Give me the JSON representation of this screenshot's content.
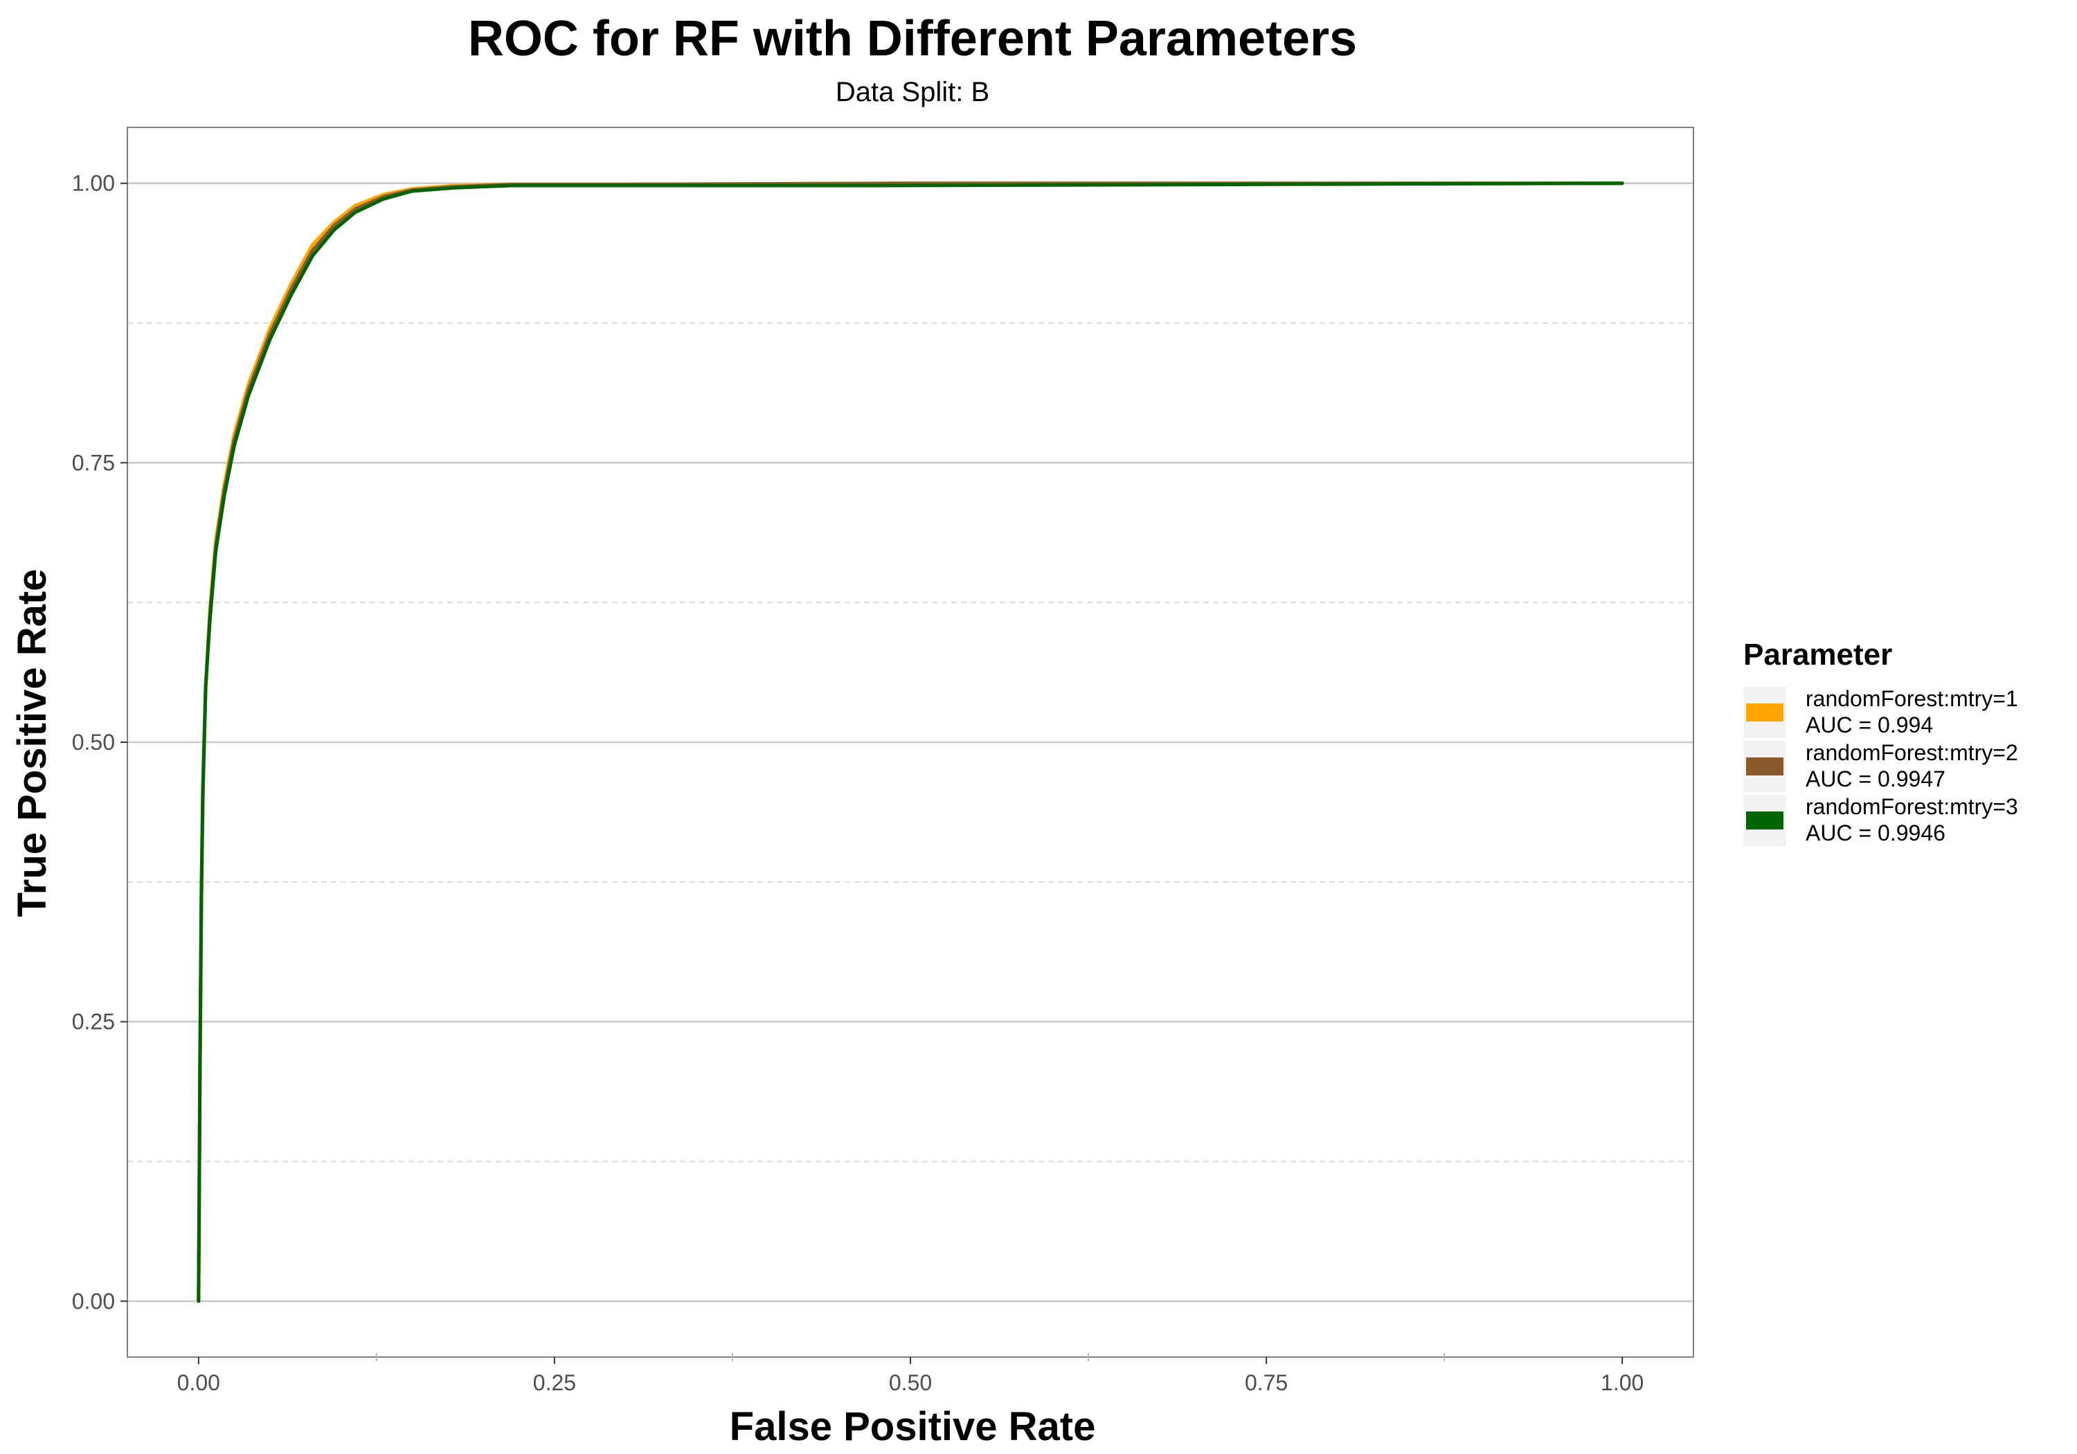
{
  "chart_data": {
    "type": "line",
    "title": "ROC for RF with Different Parameters",
    "subtitle": "Data Split: B",
    "xlabel": "False Positive Rate",
    "ylabel": "True Positive Rate",
    "xlim": [
      -0.05,
      1.05
    ],
    "ylim": [
      -0.05,
      1.05
    ],
    "x_ticks": [
      0,
      0.25,
      0.5,
      0.75,
      1
    ],
    "x_tick_labels": [
      "0.00",
      "0.25",
      "0.50",
      "0.75",
      "1.00"
    ],
    "y_ticks": [
      0,
      0.25,
      0.5,
      0.75,
      1
    ],
    "y_tick_labels": [
      "0.00",
      "0.25",
      "0.50",
      "0.75",
      "1.00"
    ],
    "grid": true,
    "legend": {
      "title": "Parameter",
      "placement": "right"
    },
    "series": [
      {
        "name": "randomForest:mtry=1",
        "auc_label": "AUC = 0.994",
        "color": "#FFA500",
        "x": [
          0,
          0.001,
          0.002,
          0.003,
          0.005,
          0.008,
          0.012,
          0.018,
          0.025,
          0.035,
          0.05,
          0.065,
          0.08,
          0.095,
          0.11,
          0.13,
          0.15,
          0.18,
          0.22,
          0.3,
          0.5,
          0.75,
          1.0
        ],
        "y": [
          0,
          0.2,
          0.35,
          0.45,
          0.55,
          0.62,
          0.68,
          0.73,
          0.775,
          0.82,
          0.87,
          0.91,
          0.945,
          0.965,
          0.98,
          0.99,
          0.995,
          0.998,
          0.999,
          0.999,
          1.0,
          1.0,
          1.0
        ]
      },
      {
        "name": "randomForest:mtry=2",
        "auc_label": "AUC = 0.9947",
        "color": "#8B5A2B",
        "x": [
          0,
          0.001,
          0.002,
          0.003,
          0.005,
          0.008,
          0.012,
          0.018,
          0.025,
          0.035,
          0.05,
          0.065,
          0.08,
          0.095,
          0.11,
          0.13,
          0.15,
          0.18,
          0.22,
          0.3,
          0.5,
          0.75,
          1.0
        ],
        "y": [
          0,
          0.21,
          0.36,
          0.45,
          0.55,
          0.615,
          0.675,
          0.725,
          0.77,
          0.815,
          0.865,
          0.905,
          0.94,
          0.962,
          0.977,
          0.988,
          0.994,
          0.997,
          0.999,
          0.999,
          1.0,
          1.0,
          1.0
        ]
      },
      {
        "name": "randomForest:mtry=3",
        "auc_label": "AUC = 0.9946",
        "color": "#006400",
        "x": [
          0,
          0.001,
          0.002,
          0.003,
          0.005,
          0.008,
          0.012,
          0.018,
          0.025,
          0.035,
          0.05,
          0.065,
          0.08,
          0.095,
          0.11,
          0.13,
          0.15,
          0.18,
          0.22,
          0.3,
          0.48,
          0.75,
          1.0
        ],
        "y": [
          0,
          0.22,
          0.37,
          0.46,
          0.55,
          0.61,
          0.67,
          0.72,
          0.765,
          0.81,
          0.86,
          0.9,
          0.935,
          0.958,
          0.974,
          0.986,
          0.993,
          0.996,
          0.998,
          0.998,
          0.998,
          0.999,
          1.0
        ]
      }
    ]
  }
}
